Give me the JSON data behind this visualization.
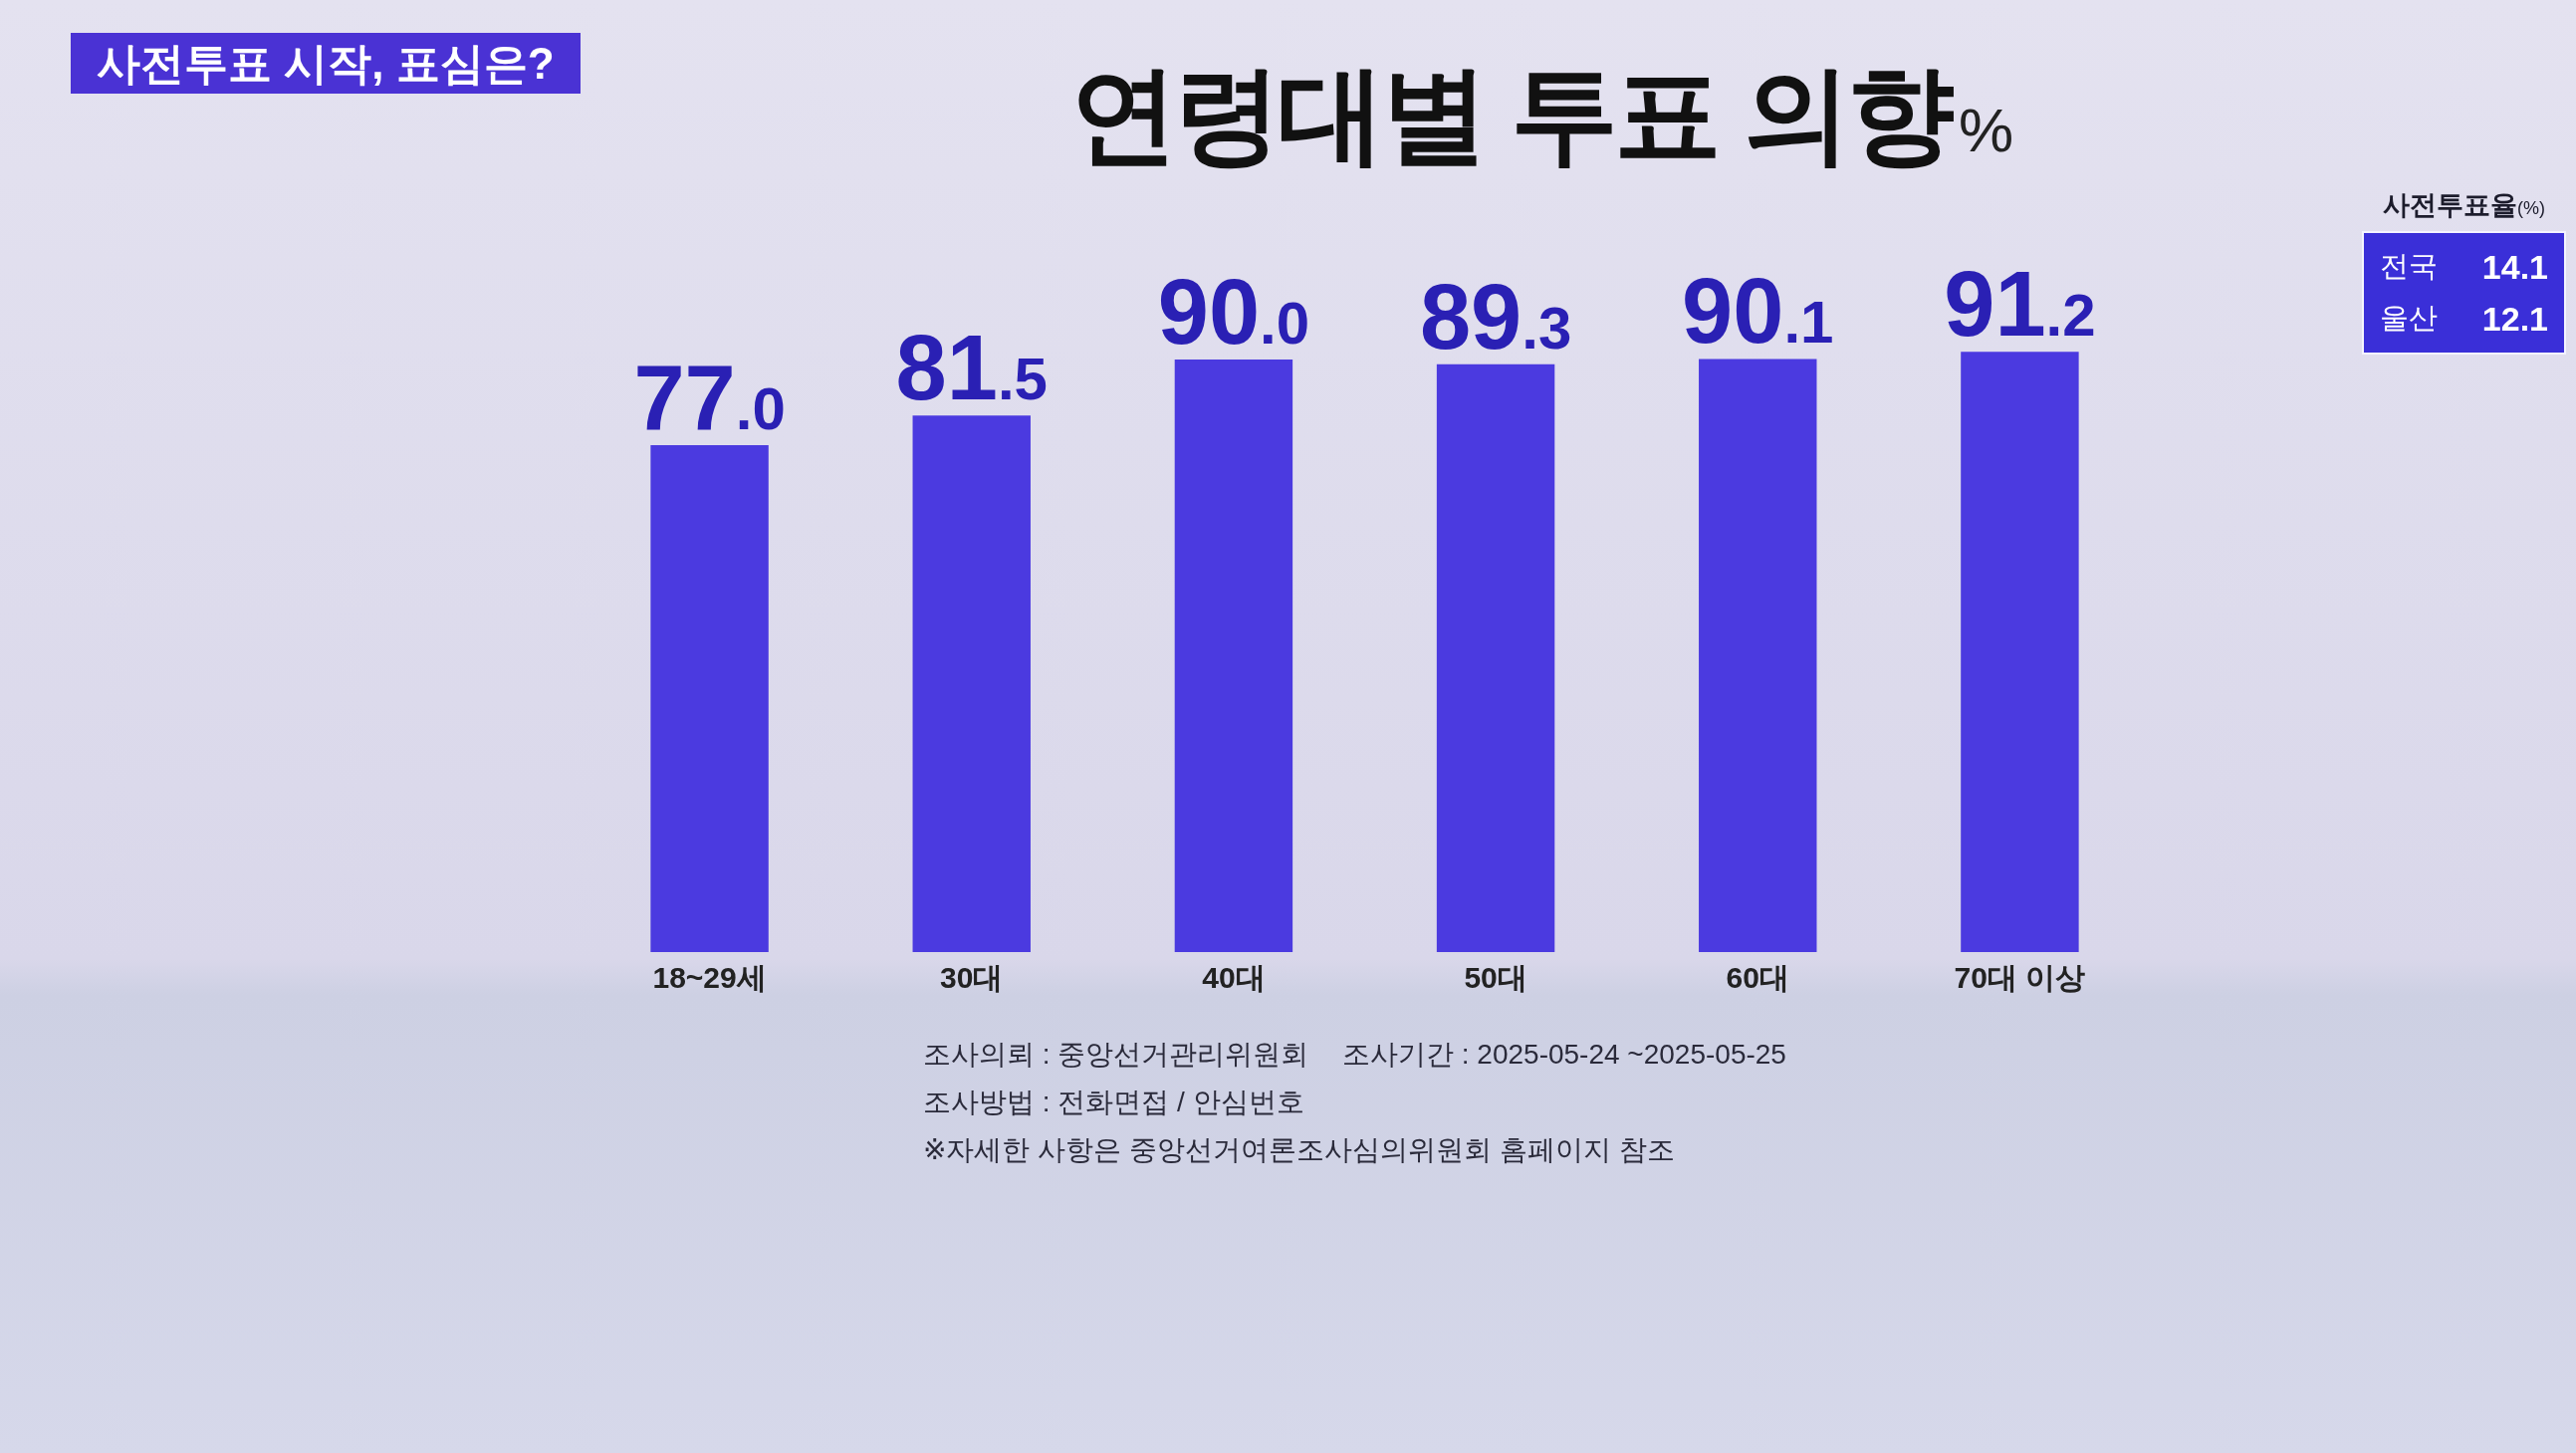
{
  "chart_data": [
    {
      "type": "bar",
      "title": "연령대별 투표 의향",
      "ylabel": "%",
      "subtitle": "사전투표 시작, 표심은?",
      "categories": [
        "18~29세",
        "30대",
        "40대",
        "50대",
        "60대",
        "70대 이상"
      ],
      "values": [
        77.0,
        81.5,
        90.0,
        89.3,
        90.1,
        91.2
      ],
      "value_labels": [
        "77.0",
        "81.5",
        "90.0",
        "89.3",
        "90.1",
        "91.2"
      ],
      "color": "#4b3ae0",
      "annotations": [
        "조사의뢰 : 중앙선거관리위원회",
        "조사기간 : 2025-05-24 ~2025-05-25",
        "조사방법 : 전화면접 / 안심번호",
        "※자세한 사항은 중앙선거여론조사심의위원회 홈페이지 참조"
      ]
    },
    {
      "type": "other",
      "title": "사전투표율",
      "ylabel": "(%)",
      "categories": [
        "전국",
        "울산"
      ],
      "values": [
        14.1,
        12.1
      ],
      "color": "#3a2fd8",
      "data_labels": true
    }
  ]
}
